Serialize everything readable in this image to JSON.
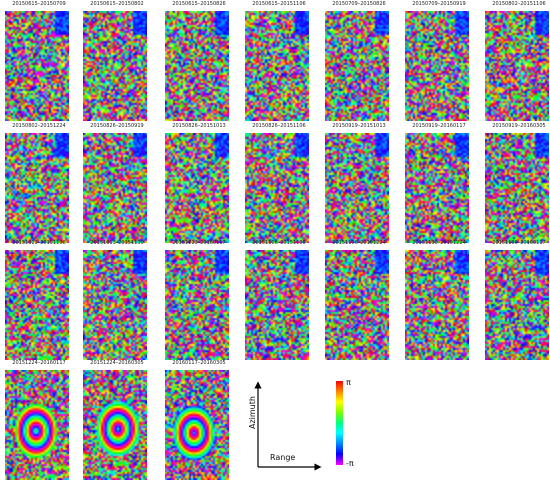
{
  "panels": [
    {
      "label": "20150615–20150709"
    },
    {
      "label": "20150615–20150802"
    },
    {
      "label": "20150615–20150826"
    },
    {
      "label": "20150615–20151106"
    },
    {
      "label": "20150709–20150826"
    },
    {
      "label": "20150709–20150919"
    },
    {
      "label": "20150802–20151106"
    },
    {
      "label": "20150802–20151224"
    },
    {
      "label": "20150826–20150919"
    },
    {
      "label": "20150826–20151013"
    },
    {
      "label": "20150826–20151106"
    },
    {
      "label": "20150919–20151013"
    },
    {
      "label": "20150919–20160117"
    },
    {
      "label": "20150919–20160305"
    },
    {
      "label": "20151013–20151106"
    },
    {
      "label": "20151013–20151130"
    },
    {
      "label": "20151213–20160117"
    },
    {
      "label": "20151106–20151130"
    },
    {
      "label": "20151106–20151224"
    },
    {
      "label": "20151130–20151224"
    },
    {
      "label": "20151130–20160117"
    },
    {
      "label": "20151224–20160117"
    },
    {
      "label": "20151224–20160305"
    },
    {
      "label": "20160117–20160305"
    }
  ],
  "legend": {
    "top_label": "π",
    "bottom_label": "-π",
    "azimuth_label": "Azimuth",
    "range_label": "Range"
  }
}
